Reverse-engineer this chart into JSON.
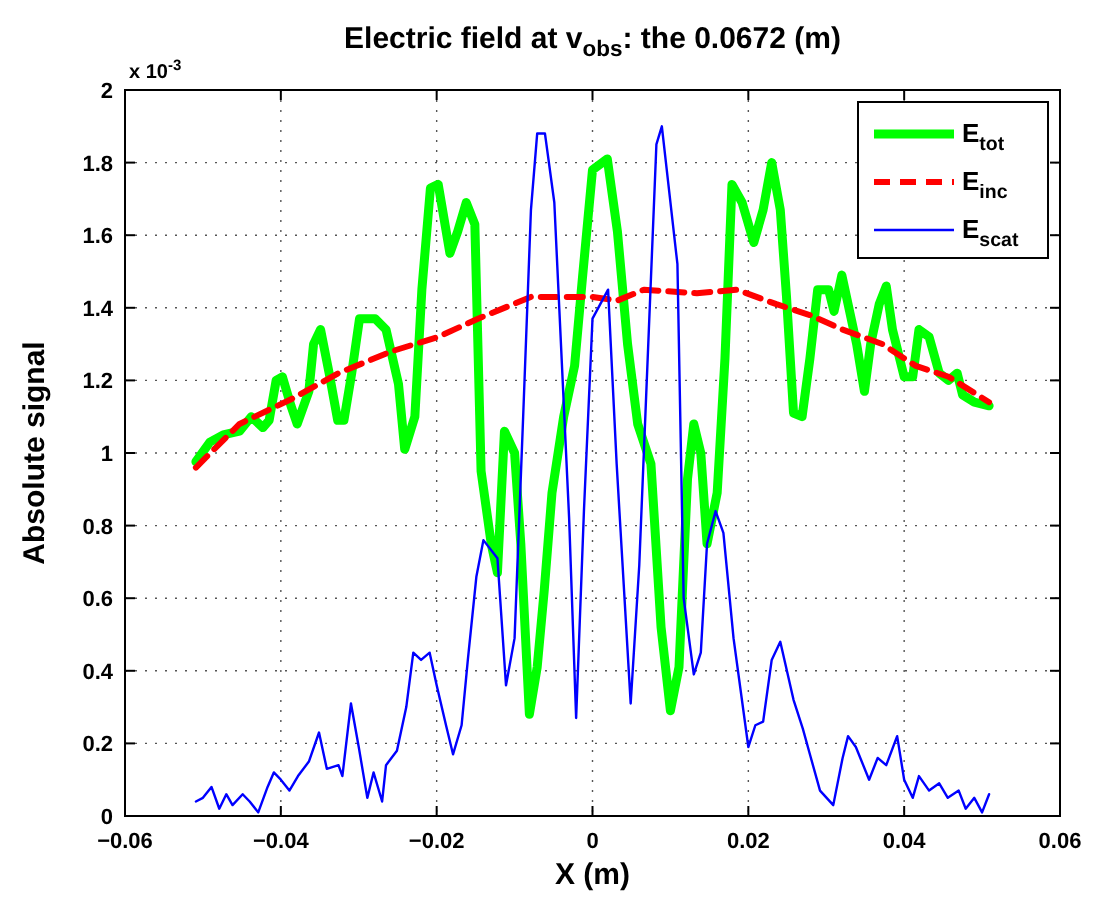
{
  "chart_data": {
    "type": "line",
    "title": "Electric field at v$_{obs}$: the 0.0672 (m)",
    "xlabel": "X (m)",
    "ylabel": "Absolute signal",
    "annotations": [
      "x 10$^{-3}$"
    ],
    "xlim": [
      -0.06,
      0.06
    ],
    "xticks": [
      {
        "value": -0.06,
        "label": "−0.06"
      },
      {
        "value": -0.04,
        "label": "−0.04"
      },
      {
        "value": -0.02,
        "label": "−0.02"
      },
      0,
      0.02,
      0.04,
      0.06
    ],
    "ylim": [
      0,
      2
    ],
    "yticks": [
      0,
      0.2,
      0.4,
      0.6,
      0.8,
      1,
      1.2,
      1.4,
      1.6,
      1.8,
      2
    ],
    "grid": true,
    "legend": "top right",
    "series": [
      {
        "name": "E$_{tot}$",
        "color": "#00ff00",
        "line_style": "solid",
        "x": [
          -0.0509,
          -0.0491,
          -0.0474,
          -0.0453,
          -0.0438,
          -0.0423,
          -0.0415,
          -0.0406,
          -0.0398,
          -0.0387,
          -0.0379,
          -0.0364,
          -0.0358,
          -0.0349,
          -0.0338,
          -0.0327,
          -0.0319,
          -0.0309,
          -0.0299,
          -0.0279,
          -0.0265,
          -0.0249,
          -0.0241,
          -0.0228,
          -0.0219,
          -0.0208,
          -0.0198,
          -0.0183,
          -0.0173,
          -0.0162,
          -0.0151,
          -0.0143,
          -0.013,
          -0.0122,
          -0.0113,
          -0.01,
          -0.0092,
          -0.0081,
          -0.0071,
          -0.0062,
          -0.0052,
          -0.0037,
          -0.0023,
          -0.0013,
          0,
          0.0019,
          0.0032,
          0.0045,
          0.0058,
          0.0075,
          0.0088,
          0.01,
          0.0111,
          0.0122,
          0.013,
          0.0139,
          0.0147,
          0.016,
          0.017,
          0.0179,
          0.0192,
          0.0207,
          0.0219,
          0.023,
          0.0241,
          0.0249,
          0.0258,
          0.0269,
          0.0279,
          0.0289,
          0.0303,
          0.031,
          0.032,
          0.0328,
          0.0339,
          0.0349,
          0.0357,
          0.0368,
          0.0377,
          0.0385,
          0.04,
          0.0411,
          0.0419,
          0.0432,
          0.0445,
          0.0457,
          0.0468,
          0.0475,
          0.049,
          0.0509
        ],
        "values": [
          0.976,
          1.03,
          1.05,
          1.06,
          1.1,
          1.07,
          1.09,
          1.2,
          1.21,
          1.13,
          1.08,
          1.17,
          1.3,
          1.34,
          1.22,
          1.09,
          1.09,
          1.22,
          1.37,
          1.37,
          1.34,
          1.19,
          1.01,
          1.1,
          1.45,
          1.73,
          1.74,
          1.55,
          1.61,
          1.69,
          1.63,
          0.95,
          0.75,
          0.67,
          1.06,
          1,
          0.75,
          0.28,
          0.41,
          0.62,
          0.89,
          1.1,
          1.24,
          1.48,
          1.78,
          1.81,
          1.61,
          1.3,
          1.08,
          0.97,
          0.52,
          0.29,
          0.41,
          0.93,
          1.08,
          1,
          0.75,
          0.89,
          1.26,
          1.74,
          1.69,
          1.58,
          1.67,
          1.8,
          1.67,
          1.43,
          1.11,
          1.1,
          1.26,
          1.45,
          1.45,
          1.39,
          1.49,
          1.41,
          1.3,
          1.17,
          1.3,
          1.41,
          1.46,
          1.34,
          1.21,
          1.21,
          1.34,
          1.32,
          1.22,
          1.2,
          1.22,
          1.16,
          1.14,
          1.13
        ]
      },
      {
        "name": "E$_{inc}$",
        "color": "#ff0000",
        "line_style": "dashed",
        "x": [
          -0.0509,
          -0.0453,
          -0.0385,
          -0.0326,
          -0.0258,
          -0.0198,
          -0.0147,
          -0.0079,
          0,
          0.0032,
          0.0066,
          0.0134,
          0.0185,
          0.0236,
          0.0279,
          0.0321,
          0.0372,
          0.0415,
          0.0457,
          0.0509
        ],
        "values": [
          0.96,
          1.08,
          1.15,
          1.22,
          1.28,
          1.32,
          1.37,
          1.43,
          1.43,
          1.42,
          1.45,
          1.44,
          1.45,
          1.41,
          1.38,
          1.34,
          1.3,
          1.24,
          1.21,
          1.14
        ]
      },
      {
        "name": "E$_{scat}$",
        "color": "#0000ff",
        "line_style": "solid",
        "x": [
          -0.0509,
          -0.05,
          -0.0489,
          -0.0479,
          -0.047,
          -0.0462,
          -0.0449,
          -0.044,
          -0.0429,
          -0.0417,
          -0.0409,
          -0.04,
          -0.0389,
          -0.0378,
          -0.0364,
          -0.0351,
          -0.0341,
          -0.0326,
          -0.0321,
          -0.031,
          -0.03,
          -0.0289,
          -0.0281,
          -0.027,
          -0.0265,
          -0.0251,
          -0.0239,
          -0.023,
          -0.022,
          -0.0209,
          -0.02,
          -0.0188,
          -0.0179,
          -0.0168,
          -0.016,
          -0.0149,
          -0.014,
          -0.0122,
          -0.0111,
          -0.01,
          -0.0089,
          -0.0079,
          -0.0071,
          -0.0061,
          -0.0049,
          -0.003,
          -0.0021,
          -0.0011,
          0,
          0.002,
          0.0031,
          0.0049,
          0.006,
          0.0082,
          0.0089,
          0.0109,
          0.0117,
          0.013,
          0.0139,
          0.0147,
          0.0158,
          0.0168,
          0.0181,
          0.02,
          0.0209,
          0.0219,
          0.023,
          0.0241,
          0.0258,
          0.027,
          0.0279,
          0.0292,
          0.0309,
          0.0321,
          0.0328,
          0.0338,
          0.0355,
          0.0366,
          0.0377,
          0.0391,
          0.04,
          0.0411,
          0.0419,
          0.0432,
          0.0445,
          0.0456,
          0.047,
          0.0479,
          0.049,
          0.05,
          0.0509
        ],
        "values": [
          0.04,
          0.05,
          0.08,
          0.02,
          0.06,
          0.03,
          0.06,
          0.04,
          0.01,
          0.08,
          0.12,
          0.1,
          0.07,
          0.11,
          0.15,
          0.23,
          0.13,
          0.14,
          0.11,
          0.31,
          0.19,
          0.05,
          0.12,
          0.04,
          0.14,
          0.18,
          0.3,
          0.45,
          0.43,
          0.45,
          0.36,
          0.25,
          0.17,
          0.25,
          0.43,
          0.66,
          0.76,
          0.71,
          0.36,
          0.49,
          1.1,
          1.67,
          1.88,
          1.88,
          1.69,
          0.82,
          0.27,
          0.84,
          1.37,
          1.45,
          0.97,
          0.31,
          0.69,
          1.85,
          1.9,
          1.52,
          0.6,
          0.39,
          0.45,
          0.75,
          0.84,
          0.78,
          0.49,
          0.19,
          0.25,
          0.26,
          0.43,
          0.48,
          0.32,
          0.24,
          0.17,
          0.07,
          0.03,
          0.16,
          0.22,
          0.19,
          0.1,
          0.16,
          0.14,
          0.22,
          0.1,
          0.05,
          0.11,
          0.07,
          0.09,
          0.05,
          0.07,
          0.02,
          0.05,
          0.01,
          0.06
        ]
      }
    ]
  }
}
